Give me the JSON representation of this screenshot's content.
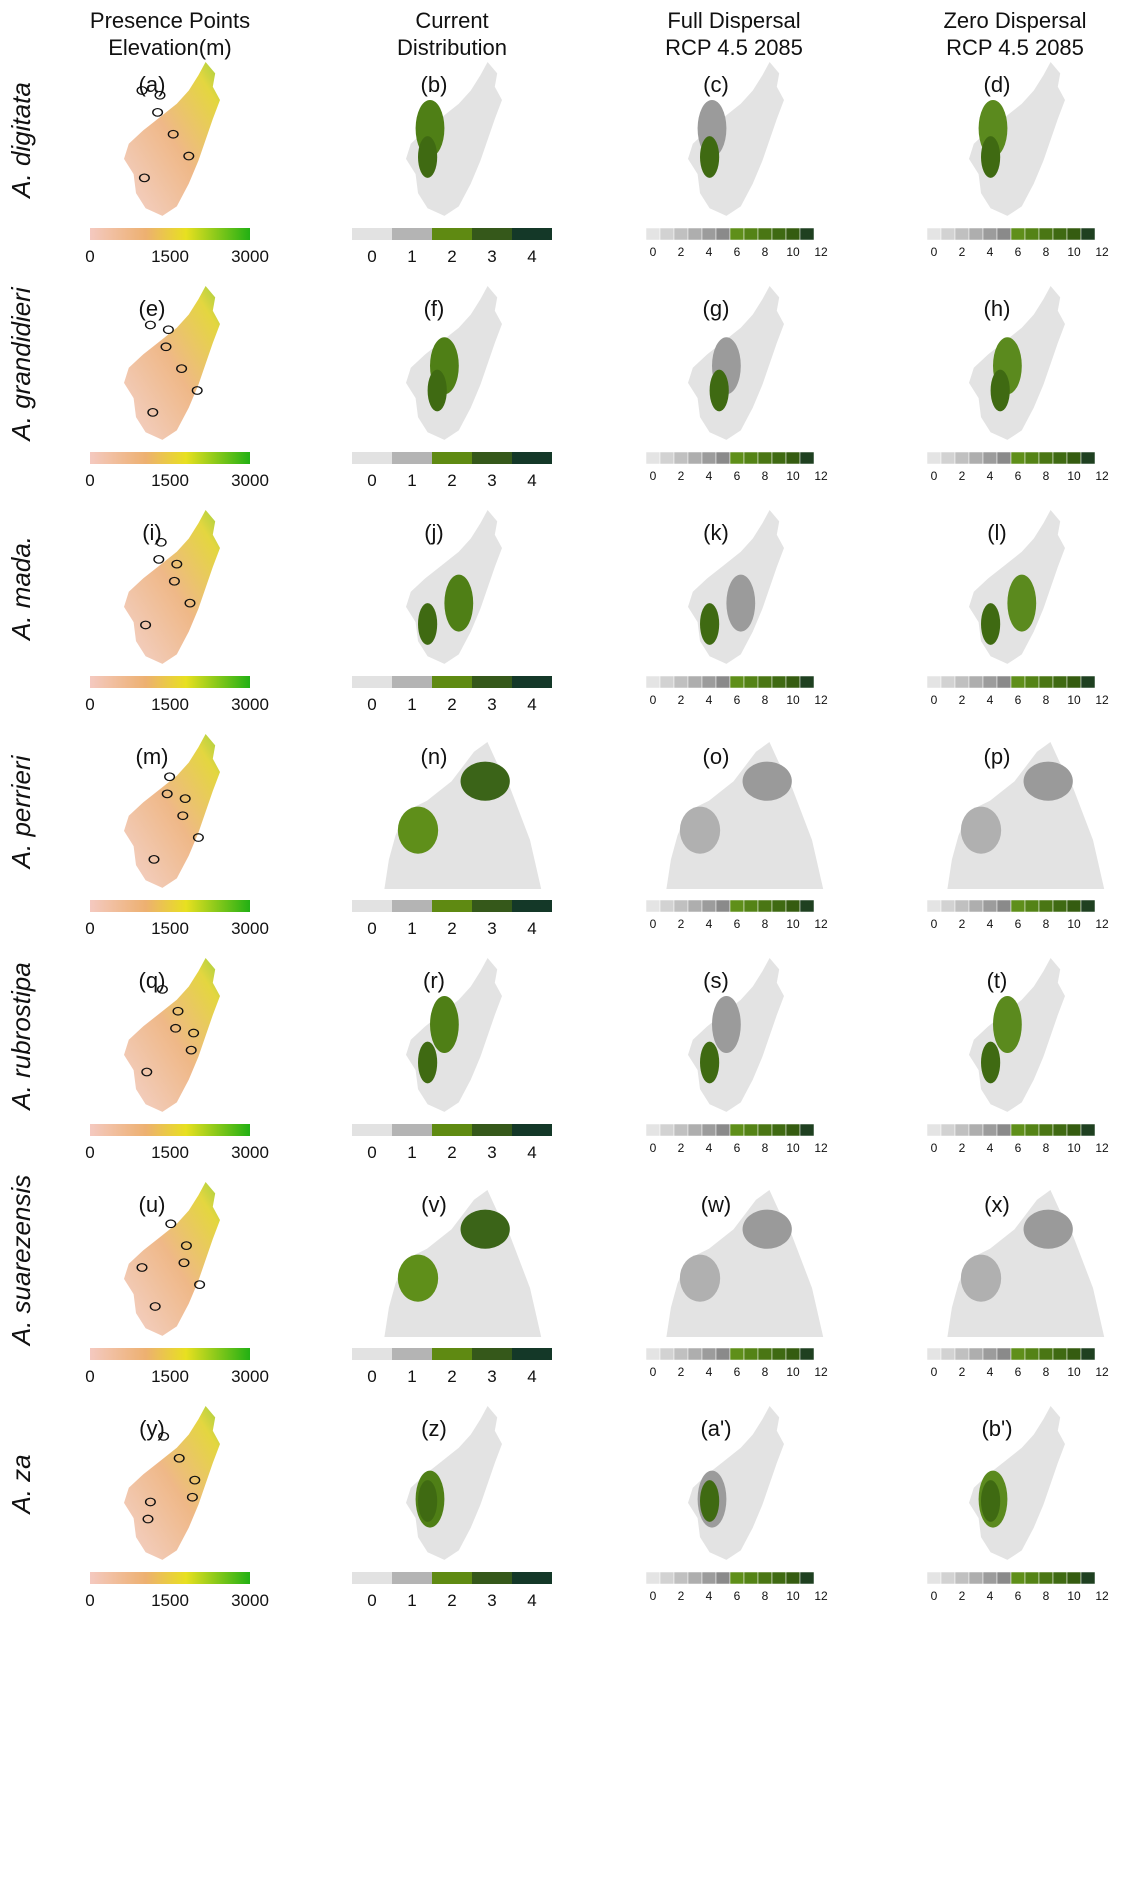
{
  "header": {
    "columns": [
      [
        "Presence Points",
        "Elevation(m)"
      ],
      [
        "Current",
        "Distribution"
      ],
      [
        "Full Dispersal",
        "RCP 4.5 2085"
      ],
      [
        "Zero Dispersal",
        "RCP 4.5 2085"
      ]
    ]
  },
  "rows": [
    {
      "species": "A. digitata",
      "panels": [
        "(a)",
        "(b)",
        "(c)",
        "(d)"
      ]
    },
    {
      "species": "A. grandidieri",
      "panels": [
        "(e)",
        "(f)",
        "(g)",
        "(h)"
      ]
    },
    {
      "species": "A. mada.",
      "panels": [
        "(i)",
        "(j)",
        "(k)",
        "(l)"
      ]
    },
    {
      "species": "A. perrieri",
      "panels": [
        "(m)",
        "(n)",
        "(o)",
        "(p)"
      ]
    },
    {
      "species": "A. rubrostipa",
      "panels": [
        "(q)",
        "(r)",
        "(s)",
        "(t)"
      ]
    },
    {
      "species": "A. suarezensis",
      "panels": [
        "(u)",
        "(v)",
        "(w)",
        "(x)"
      ]
    },
    {
      "species": "A. za",
      "panels": [
        "(y)",
        "(z)",
        "(a')",
        "(b')"
      ]
    }
  ],
  "legends": {
    "elevation": [
      0,
      1500,
      3000
    ],
    "current": [
      0,
      1,
      2,
      3,
      4
    ],
    "dispersal": [
      0,
      2,
      4,
      6,
      8,
      10,
      12
    ]
  }
}
